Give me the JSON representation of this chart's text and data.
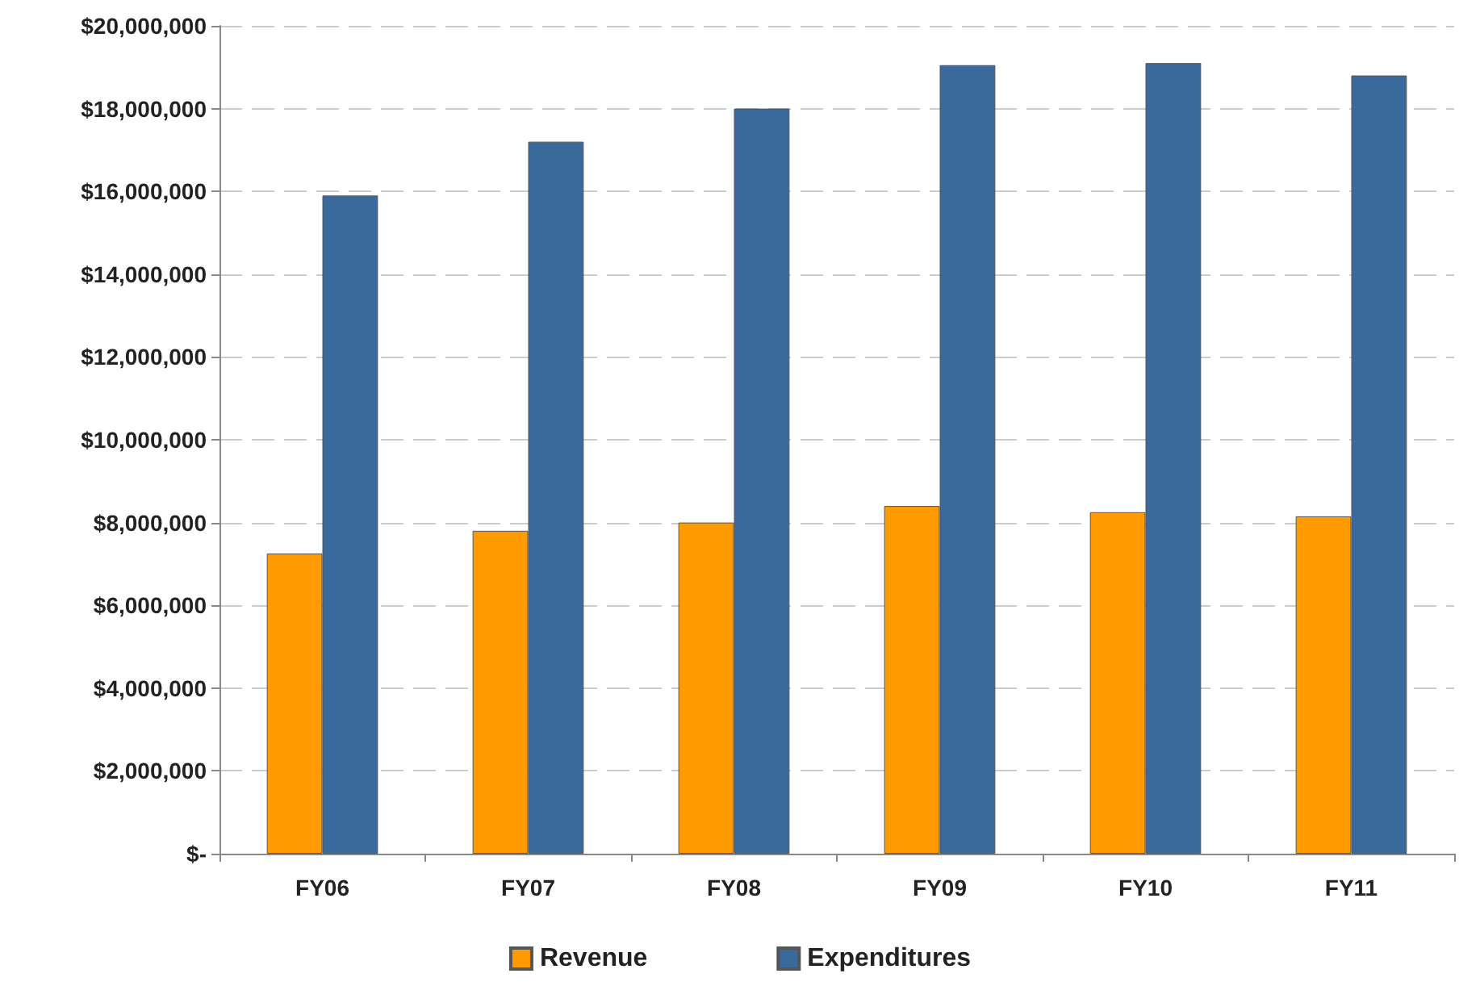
{
  "chart_data": {
    "type": "bar",
    "categories": [
      "FY06",
      "FY07",
      "FY08",
      "FY09",
      "FY10",
      "FY11"
    ],
    "series": [
      {
        "name": "Revenue",
        "color": "#ff9a00",
        "values": [
          7250000,
          7800000,
          8000000,
          8400000,
          8250000,
          8150000
        ]
      },
      {
        "name": "Expenditures",
        "color": "#3a6a9c",
        "values": [
          15900000,
          17200000,
          18000000,
          19050000,
          19100000,
          18800000
        ]
      }
    ],
    "ylim": [
      0,
      20000000
    ],
    "yticks": [
      {
        "value": 0,
        "label": "$-"
      },
      {
        "value": 2000000,
        "label": "$2,000,000"
      },
      {
        "value": 4000000,
        "label": "$4,000,000"
      },
      {
        "value": 6000000,
        "label": "$6,000,000"
      },
      {
        "value": 8000000,
        "label": "$8,000,000"
      },
      {
        "value": 10000000,
        "label": "$10,000,000"
      },
      {
        "value": 12000000,
        "label": "$12,000,000"
      },
      {
        "value": 14000000,
        "label": "$14,000,000"
      },
      {
        "value": 16000000,
        "label": "$16,000,000"
      },
      {
        "value": 18000000,
        "label": "$18,000,000"
      },
      {
        "value": 20000000,
        "label": "$20,000,000"
      }
    ],
    "grid": "y",
    "legend": "bottom"
  }
}
